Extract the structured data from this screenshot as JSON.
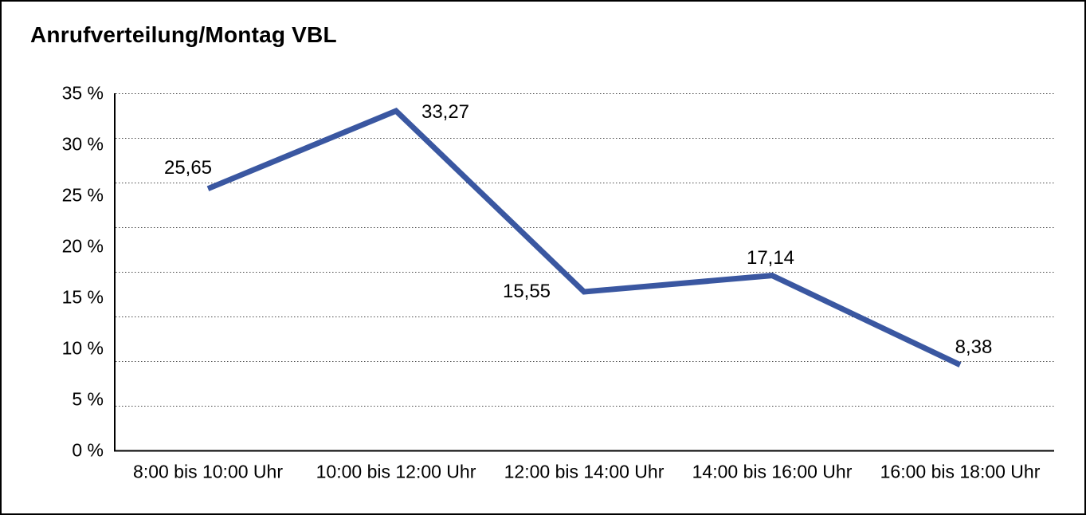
{
  "chart_data": {
    "type": "line",
    "title": "Anrufverteilung/Montag VBL",
    "categories": [
      "8:00 bis 10:00 Uhr",
      "10:00 bis 12:00 Uhr",
      "12:00 bis 14:00 Uhr",
      "14:00 bis 16:00 Uhr",
      "16:00 bis 18:00 Uhr"
    ],
    "values": [
      25.65,
      33.27,
      15.55,
      17.14,
      8.38
    ],
    "point_labels": [
      "25,65",
      "33,27",
      "15,55",
      "17,14",
      "8,38"
    ],
    "y_ticks": [
      {
        "value": 35,
        "label": "35 %"
      },
      {
        "value": 30,
        "label": "30 %"
      },
      {
        "value": 25,
        "label": "25 %"
      },
      {
        "value": 20,
        "label": "20 %"
      },
      {
        "value": 15,
        "label": "15 %"
      },
      {
        "value": 10,
        "label": "10 %"
      },
      {
        "value": 5,
        "label": "5 %"
      },
      {
        "value": 0,
        "label": "0 %"
      }
    ],
    "ylim": [
      0,
      35
    ],
    "xlabel": "",
    "ylabel": "",
    "legend": "none",
    "grid": "dotted-horizontal",
    "line_color": "#3A57A1",
    "grid_color": "#4a4a4a",
    "axis_color": "#000000",
    "text_color": "#000000"
  }
}
